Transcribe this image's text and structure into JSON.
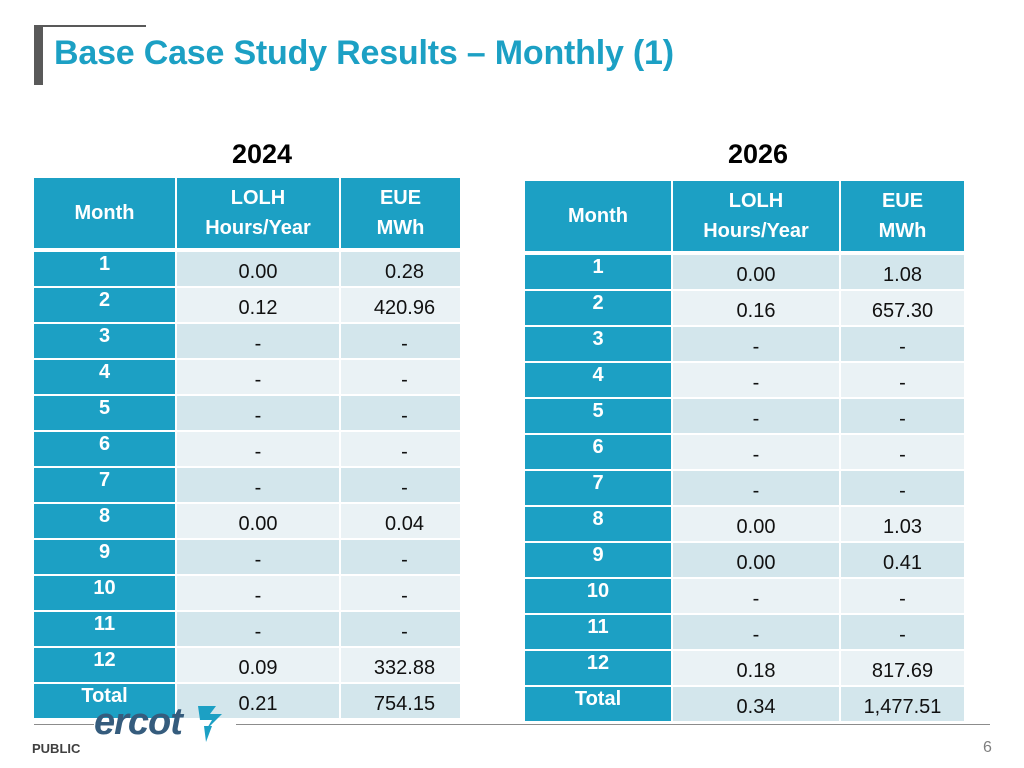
{
  "slide": {
    "title": "Base Case Study Results – Monthly (1)",
    "footer_label": "PUBLIC",
    "page_number": "6",
    "logo_text": "ercot"
  },
  "colors": {
    "accent": "#1ca0c4",
    "row_light": "#eaf2f5",
    "row_dark": "#d3e6ec",
    "title_bar": "#595959"
  },
  "tables": [
    {
      "year": "2024",
      "headers": {
        "month": "Month",
        "lolh_line1": "LOLH",
        "lolh_line2": "Hours/Year",
        "eue_line1": "EUE",
        "eue_line2": "MWh"
      },
      "rows": [
        {
          "month": "1",
          "lolh": "0.00",
          "eue": "0.28"
        },
        {
          "month": "2",
          "lolh": "0.12",
          "eue": "420.96"
        },
        {
          "month": "3",
          "lolh": "-",
          "eue": "-"
        },
        {
          "month": "4",
          "lolh": "-",
          "eue": "-"
        },
        {
          "month": "5",
          "lolh": "-",
          "eue": "-"
        },
        {
          "month": "6",
          "lolh": "-",
          "eue": "-"
        },
        {
          "month": "7",
          "lolh": "-",
          "eue": "-"
        },
        {
          "month": "8",
          "lolh": "0.00",
          "eue": "0.04"
        },
        {
          "month": "9",
          "lolh": "-",
          "eue": "-"
        },
        {
          "month": "10",
          "lolh": "-",
          "eue": "-"
        },
        {
          "month": "11",
          "lolh": "-",
          "eue": "-"
        },
        {
          "month": "12",
          "lolh": "0.09",
          "eue": "332.88"
        },
        {
          "month": "Total",
          "lolh": "0.21",
          "eue": "754.15"
        }
      ]
    },
    {
      "year": "2026",
      "headers": {
        "month": "Month",
        "lolh_line1": "LOLH",
        "lolh_line2": "Hours/Year",
        "eue_line1": "EUE",
        "eue_line2": "MWh"
      },
      "rows": [
        {
          "month": "1",
          "lolh": "0.00",
          "eue": "1.08"
        },
        {
          "month": "2",
          "lolh": "0.16",
          "eue": "657.30"
        },
        {
          "month": "3",
          "lolh": "-",
          "eue": "-"
        },
        {
          "month": "4",
          "lolh": "-",
          "eue": "-"
        },
        {
          "month": "5",
          "lolh": "-",
          "eue": "-"
        },
        {
          "month": "6",
          "lolh": "-",
          "eue": "-"
        },
        {
          "month": "7",
          "lolh": "-",
          "eue": "-"
        },
        {
          "month": "8",
          "lolh": "0.00",
          "eue": "1.03"
        },
        {
          "month": "9",
          "lolh": "0.00",
          "eue": "0.41"
        },
        {
          "month": "10",
          "lolh": "-",
          "eue": "-"
        },
        {
          "month": "11",
          "lolh": "-",
          "eue": "-"
        },
        {
          "month": "12",
          "lolh": "0.18",
          "eue": "817.69"
        },
        {
          "month": "Total",
          "lolh": "0.34",
          "eue": "1,477.51"
        }
      ]
    }
  ]
}
